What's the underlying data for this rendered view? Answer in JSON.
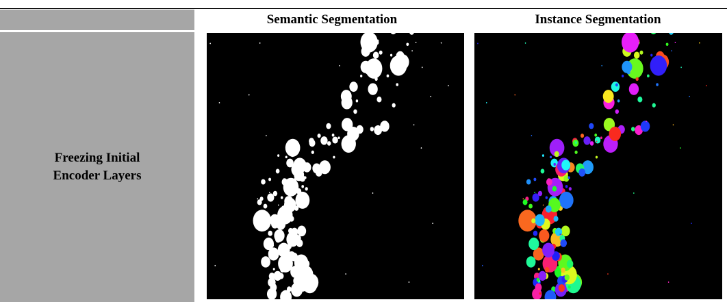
{
  "table": {
    "header": [
      "",
      "Semantic Segmentation",
      "Instance Segmentation"
    ],
    "rows": [
      [
        "Freezing Initial Encoder Layers"
      ]
    ]
  }
}
